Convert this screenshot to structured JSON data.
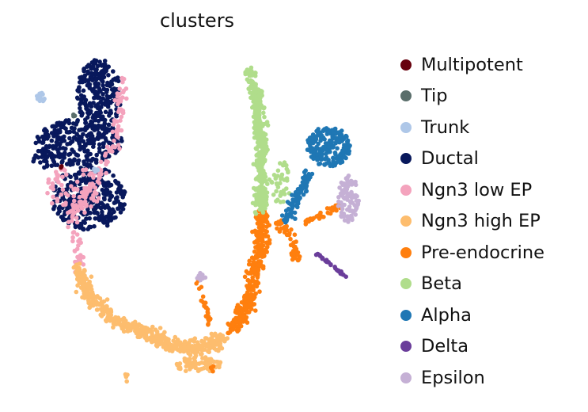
{
  "chart_data": {
    "type": "scatter",
    "title": "clusters",
    "xlabel": "",
    "ylabel": "",
    "axes_visible": false,
    "grid": false,
    "legend_position": "right",
    "legend": [
      {
        "name": "Multipotent",
        "color": "#67000d"
      },
      {
        "name": "Tip",
        "color": "#5a6e6b"
      },
      {
        "name": "Trunk",
        "color": "#aec7e8"
      },
      {
        "name": "Ductal",
        "color": "#08185c"
      },
      {
        "name": "Ngn3 low EP",
        "color": "#f4a3bd"
      },
      {
        "name": "Ngn3 high EP",
        "color": "#fdbd6e"
      },
      {
        "name": "Pre-endocrine",
        "color": "#ff7f0e"
      },
      {
        "name": "Beta",
        "color": "#b0dd8b"
      },
      {
        "name": "Alpha",
        "color": "#1f77b4"
      },
      {
        "name": "Delta",
        "color": "#6a3d9a"
      },
      {
        "name": "Epsilon",
        "color": "#c5b0d5"
      }
    ]
  }
}
